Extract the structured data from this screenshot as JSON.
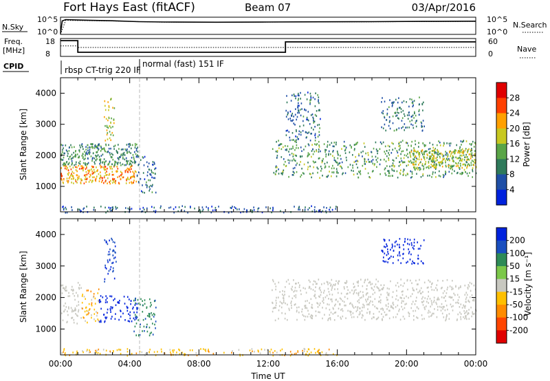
{
  "header": {
    "title": "Fort Hays East (fitACF)",
    "beam": "Beam 07",
    "date": "03/Apr/2016"
  },
  "chart_data": [
    {
      "type": "line",
      "panel": "noise",
      "labels": {
        "left": "N.Sky",
        "right": "N.Search",
        "tick_top": "10^5",
        "tick_bottom": "10^0"
      },
      "yscale": "log",
      "ylim": [
        1,
        100000
      ],
      "series": [
        {
          "name": "N.Sky",
          "style": "solid",
          "x": [
            0,
            0.1,
            0.3,
            1,
            3,
            4.5,
            6,
            9,
            12,
            15,
            18,
            21,
            24
          ],
          "y": [
            2,
            8000,
            20000,
            15000,
            9000,
            5000,
            4000,
            3500,
            4000,
            4500,
            5000,
            6000,
            7000
          ]
        },
        {
          "name": "N.Search",
          "style": "dotted",
          "x": [
            0,
            0.3,
            3,
            6,
            12,
            18,
            24
          ],
          "y": [
            1,
            12000,
            8000,
            3500,
            3800,
            4500,
            6000
          ]
        }
      ]
    },
    {
      "type": "line",
      "panel": "frequency",
      "labels": {
        "left_top": "Freq.",
        "left_unit": "[MHz]",
        "right": "Nave",
        "tick_left_top": "18",
        "tick_left_bottom": "8",
        "tick_right_top": "60",
        "tick_right_bottom": "0"
      },
      "series": [
        {
          "name": "Freq.",
          "style": "solid",
          "x": [
            0,
            1,
            1,
            13,
            13,
            24
          ],
          "y": [
            16.8,
            16.8,
            10.3,
            10.3,
            16.1,
            16.1
          ]
        },
        {
          "name": "Nave",
          "style": "dotted",
          "x": [
            0,
            1,
            1,
            24
          ],
          "y": [
            35,
            35,
            30,
            30
          ]
        }
      ]
    },
    {
      "type": "table",
      "panel": "cpid",
      "label": "CPID",
      "segments": [
        {
          "start": 0,
          "end": 4.5,
          "text": "rbsp CT-trig 220 IF"
        },
        {
          "start": 4.5,
          "end": 24,
          "text": "normal (fast) 151 IF"
        }
      ]
    },
    {
      "type": "heatmap",
      "panel": "power",
      "ylabel": "Slant Range [km]",
      "xlim": [
        0,
        24
      ],
      "ylim": [
        180,
        4500
      ],
      "yticks": [
        1000,
        2000,
        3000,
        4000
      ],
      "colorbar": {
        "label": "Power [dB]",
        "ticks": [
          4,
          8,
          12,
          16,
          20,
          24,
          28
        ],
        "range": [
          0,
          32
        ],
        "colors": [
          "#0022dd",
          "#1f4fa6",
          "#2f7a5b",
          "#5aa547",
          "#c8c820",
          "#ffa000",
          "#ff4000",
          "#e00000"
        ]
      },
      "regions": [
        {
          "x": [
            0,
            4.4
          ],
          "y": [
            1100,
            1700
          ],
          "level": 22
        },
        {
          "x": [
            0,
            4.5
          ],
          "y": [
            1700,
            2400
          ],
          "level": 11
        },
        {
          "x": [
            2.5,
            3.2
          ],
          "y": [
            2500,
            3900
          ],
          "level": 17
        },
        {
          "x": [
            4.4,
            5.5
          ],
          "y": [
            800,
            2000
          ],
          "level": 8
        },
        {
          "x": [
            12.2,
            24
          ],
          "y": [
            1300,
            2500
          ],
          "level": 12
        },
        {
          "x": [
            20,
            24
          ],
          "y": [
            1600,
            2200
          ],
          "level": 17
        },
        {
          "x": [
            13,
            15
          ],
          "y": [
            2500,
            4100
          ],
          "level": 8
        },
        {
          "x": [
            18.5,
            21
          ],
          "y": [
            2800,
            3900
          ],
          "level": 9
        },
        {
          "x": [
            0,
            16
          ],
          "y": [
            180,
            400
          ],
          "level": 7
        }
      ]
    },
    {
      "type": "heatmap",
      "panel": "velocity",
      "ylabel": "Slant Range [km]",
      "xlabel": "Time UT",
      "xlim": [
        0,
        24
      ],
      "ylim": [
        180,
        4500
      ],
      "yticks": [
        1000,
        2000,
        3000,
        4000
      ],
      "xticks": [
        0,
        4,
        8,
        12,
        16,
        20,
        24
      ],
      "xtick_labels": [
        "00:00",
        "04:00",
        "08:00",
        "12:00",
        "16:00",
        "20:00",
        "00:00"
      ],
      "colorbar": {
        "label": "Velocity [m s⁻¹]",
        "ticks": [
          200,
          100,
          50,
          15,
          -15,
          -50,
          -100,
          -200
        ],
        "colors": [
          "#0022dd",
          "#1a4fbf",
          "#2e8b57",
          "#7cc84a",
          "#c8c8c0",
          "#ffc000",
          "#ff8c00",
          "#ff4500",
          "#e00000"
        ]
      },
      "regions": [
        {
          "x": [
            0,
            1.2
          ],
          "y": [
            1200,
            2500
          ],
          "velocity": 0
        },
        {
          "x": [
            1.2,
            2.2
          ],
          "y": [
            1200,
            2300
          ],
          "velocity": -40
        },
        {
          "x": [
            2.2,
            4.4
          ],
          "y": [
            1250,
            2100
          ],
          "velocity": 180
        },
        {
          "x": [
            4.2,
            5.5
          ],
          "y": [
            800,
            2000
          ],
          "velocity": 60
        },
        {
          "x": [
            2.5,
            3.2
          ],
          "y": [
            2500,
            3900
          ],
          "velocity": 150
        },
        {
          "x": [
            12.2,
            24
          ],
          "y": [
            1300,
            2600
          ],
          "velocity": 0
        },
        {
          "x": [
            18.5,
            21
          ],
          "y": [
            3100,
            3900
          ],
          "velocity": 200
        },
        {
          "x": [
            0,
            16
          ],
          "y": [
            180,
            400
          ],
          "velocity": -30
        }
      ]
    }
  ]
}
